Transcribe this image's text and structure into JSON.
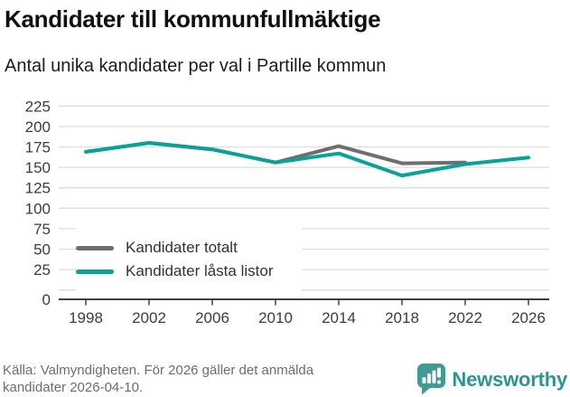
{
  "header": {
    "title": "Kandidater till kommunfullmäktige",
    "subtitle": "Antal unika kandidater per val i Partille kommun"
  },
  "chart_data": {
    "type": "line",
    "title": "Kandidater till kommunfullmäktige",
    "subtitle": "Antal unika kandidater per val i Partille kommun",
    "x": [
      1998,
      2002,
      2006,
      2010,
      2014,
      2018,
      2022,
      2026
    ],
    "series": [
      {
        "id": "kandidater-totalt",
        "name": "Kandidater totalt",
        "color": "#6e6e6e",
        "values": [
          169,
          180,
          172,
          156,
          176,
          155,
          156,
          null
        ]
      },
      {
        "id": "kandidater-lasta-listor",
        "name": "Kandidater låsta listor",
        "color": "#09a198",
        "values": [
          169,
          180,
          172,
          156,
          167,
          140,
          154,
          162
        ]
      }
    ],
    "xlabel": "",
    "ylabel": "",
    "ylim": [
      0,
      225
    ],
    "yticks": [
      0,
      25,
      50,
      75,
      100,
      125,
      150,
      175,
      200,
      225
    ],
    "grid": true,
    "legend_position": "inside lower-left"
  },
  "legend": {
    "items": [
      {
        "label": "Kandidater totalt",
        "color": "#6e6e6e"
      },
      {
        "label": "Kandidater låsta listor",
        "color": "#09a198"
      }
    ]
  },
  "footer": {
    "source_line1": "Källa: Valmyndigheten. För 2026 gäller det anmälda",
    "source_line2": "kandidater 2026-04-10.",
    "brand": "Newsworthy",
    "brand_text_color": "#2c968e",
    "brand_mark_color": "#3f9c94",
    "logo_icon": "bar-chart-speech-bubble"
  },
  "style": {
    "grid_color": "#dedede",
    "axis_color": "#404040",
    "tick_label_color": "#3d3d3d"
  }
}
